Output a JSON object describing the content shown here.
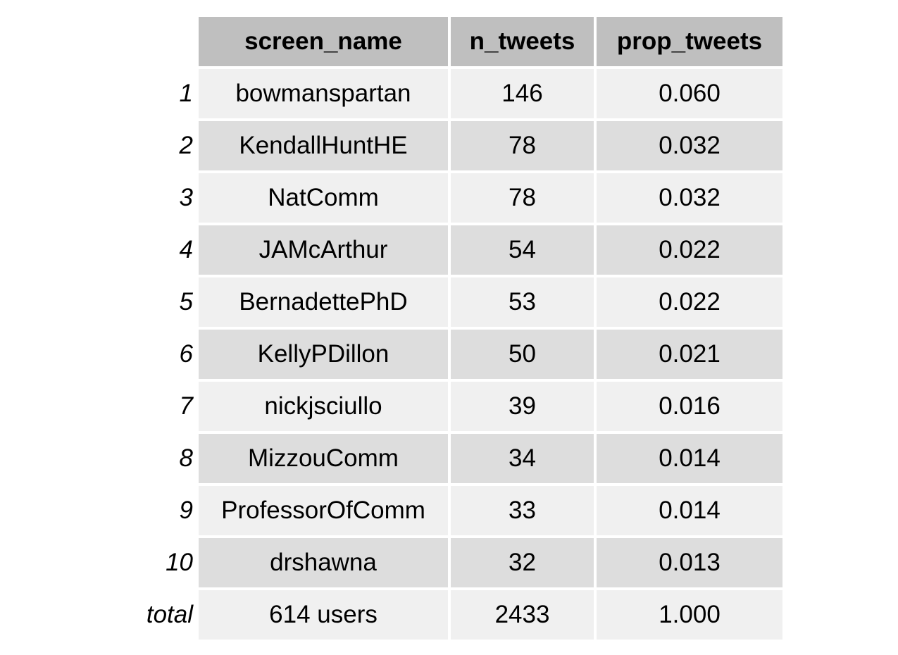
{
  "chart_data": {
    "type": "table",
    "columns": [
      "screen_name",
      "n_tweets",
      "prop_tweets"
    ],
    "rows": [
      {
        "label": "1",
        "cells": [
          "bowmanspartan",
          "146",
          "0.060"
        ]
      },
      {
        "label": "2",
        "cells": [
          "KendallHuntHE",
          "78",
          "0.032"
        ]
      },
      {
        "label": "3",
        "cells": [
          "NatComm",
          "78",
          "0.032"
        ]
      },
      {
        "label": "4",
        "cells": [
          "JAMcArthur",
          "54",
          "0.022"
        ]
      },
      {
        "label": "5",
        "cells": [
          "BernadettePhD",
          "53",
          "0.022"
        ]
      },
      {
        "label": "6",
        "cells": [
          "KellyPDillon",
          "50",
          "0.021"
        ]
      },
      {
        "label": "7",
        "cells": [
          "nickjsciullo",
          "39",
          "0.016"
        ]
      },
      {
        "label": "8",
        "cells": [
          "MizzouComm",
          "34",
          "0.014"
        ]
      },
      {
        "label": "9",
        "cells": [
          "ProfessorOfComm",
          "33",
          "0.014"
        ]
      },
      {
        "label": "10",
        "cells": [
          "drshawna",
          "32",
          "0.013"
        ]
      },
      {
        "label": "total",
        "cells": [
          "614 users",
          "2433",
          "1.000"
        ]
      }
    ]
  }
}
